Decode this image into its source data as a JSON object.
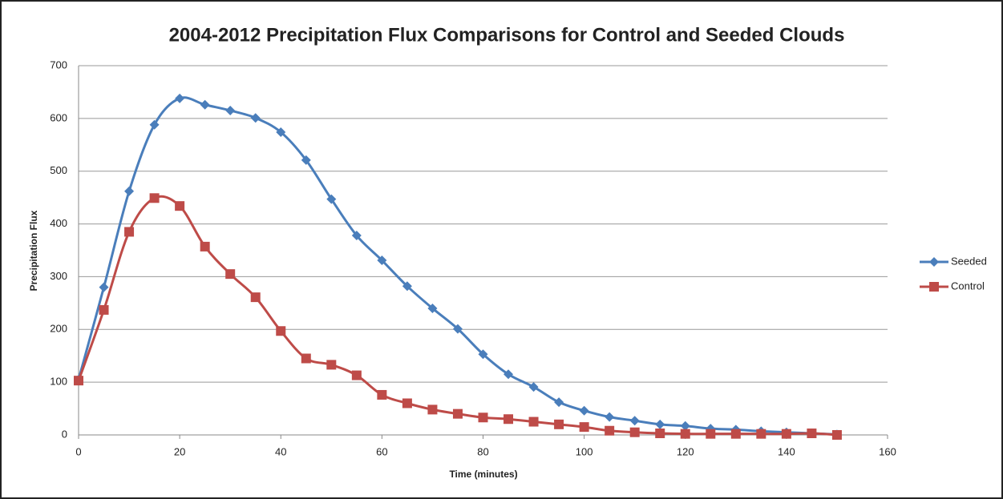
{
  "chart_data": {
    "type": "line",
    "title": "2004-2012 Precipitation Flux Comparisons for Control and Seeded Clouds",
    "x_label": "Time (minutes)",
    "y_label": "Precipitation Flux",
    "x": [
      0,
      5,
      10,
      15,
      20,
      25,
      30,
      35,
      40,
      45,
      50,
      55,
      60,
      65,
      70,
      75,
      80,
      85,
      90,
      95,
      100,
      105,
      110,
      115,
      120,
      125,
      130,
      135,
      140,
      145,
      150
    ],
    "series": [
      {
        "name": "Seeded",
        "color": "#4a7ebb",
        "marker": "diamond",
        "values": [
          105,
          280,
          462,
          588,
          638,
          626,
          615,
          601,
          574,
          521,
          447,
          378,
          331,
          282,
          240,
          201,
          153,
          115,
          91,
          62,
          46,
          34,
          27,
          20,
          17,
          12,
          10,
          7,
          5,
          3,
          1
        ]
      },
      {
        "name": "Control",
        "color": "#be4b48",
        "marker": "square",
        "values": [
          103,
          237,
          385,
          449,
          434,
          357,
          305,
          261,
          197,
          145,
          133,
          113,
          76,
          60,
          48,
          40,
          33,
          30,
          25,
          20,
          15,
          8,
          5,
          3,
          2,
          2,
          2,
          2,
          2,
          3,
          0
        ]
      }
    ],
    "xlim": [
      0,
      160
    ],
    "xticks": [
      0,
      20,
      40,
      60,
      80,
      100,
      120,
      140,
      160
    ],
    "ylim": [
      0,
      700
    ],
    "yticks": [
      0,
      100,
      200,
      300,
      400,
      500,
      600,
      700
    ],
    "grid": true,
    "smooth": true,
    "legend": "right"
  }
}
